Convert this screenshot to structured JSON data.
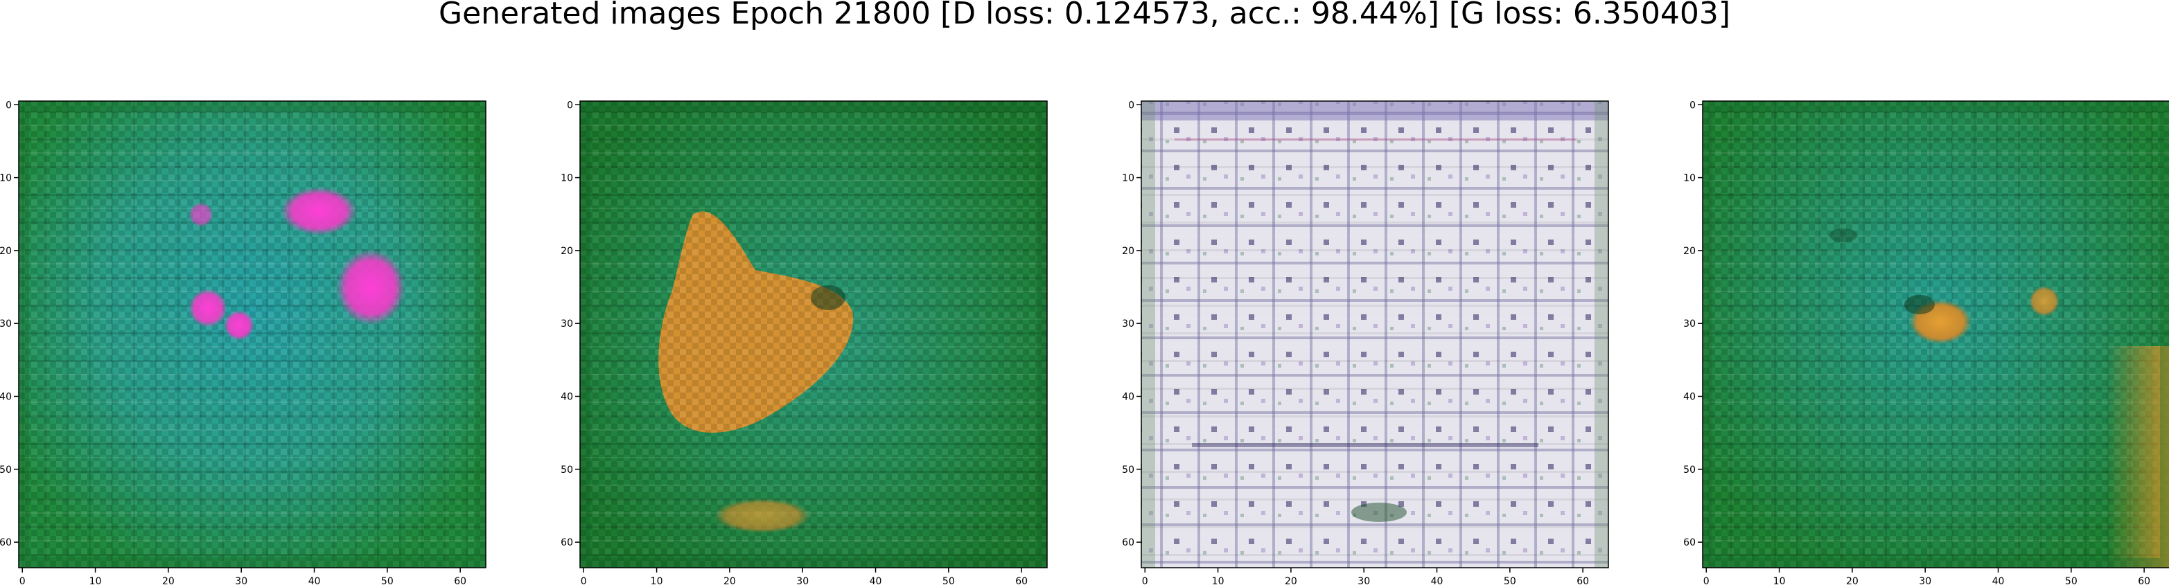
{
  "figure": {
    "title": "Generated images Epoch 21800 [D loss: 0.124573, acc.: 98.44%] [G loss: 6.350403]"
  },
  "panels": [
    {
      "name": "generated-image-1",
      "description_colors": {
        "base": "#1f9a4e",
        "center": "#27a3a8",
        "accent": "#ff2fcf"
      },
      "x_ticks": [
        "0",
        "10",
        "20",
        "30",
        "40",
        "50",
        "60"
      ],
      "y_ticks": [
        "0",
        "10",
        "20",
        "30",
        "40",
        "50",
        "60"
      ]
    },
    {
      "name": "generated-image-2",
      "description_colors": {
        "base": "#1d8f3a",
        "center": "#2a9b7f",
        "accent": "#d9902c"
      },
      "x_ticks": [
        "0",
        "10",
        "20",
        "30",
        "40",
        "50",
        "60"
      ],
      "y_ticks": [
        "0",
        "10",
        "20",
        "30",
        "40",
        "50",
        "60"
      ]
    },
    {
      "name": "generated-image-3",
      "description_colors": {
        "base": "#d9dbe8",
        "center": "#e8e6ef",
        "accent": "#3a2d7c"
      },
      "x_ticks": [
        "0",
        "10",
        "20",
        "30",
        "40",
        "50",
        "60"
      ],
      "y_ticks": [
        "0",
        "10",
        "20",
        "30",
        "40",
        "50",
        "60"
      ]
    },
    {
      "name": "generated-image-4",
      "description_colors": {
        "base": "#1f9440",
        "center": "#27a093",
        "accent": "#e07a2a"
      },
      "x_ticks": [
        "0",
        "10",
        "20",
        "30",
        "40",
        "50",
        "60"
      ],
      "y_ticks": [
        "0",
        "10",
        "20",
        "30",
        "40",
        "50",
        "60"
      ]
    }
  ]
}
